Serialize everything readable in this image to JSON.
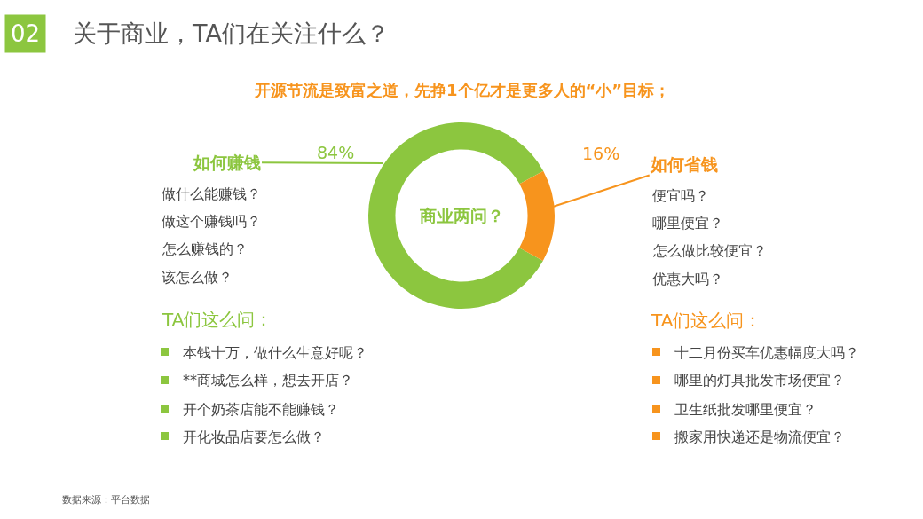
{
  "chart_data": {
    "type": "donut",
    "title": "关于商业，TA们在关注什么？",
    "subtitle": "开源节流是致富之道，先挣1个亿才是更多人的“小”目标；",
    "categories": [
      "如何赚钱",
      "如何省钱"
    ],
    "values": [
      84,
      16
    ],
    "colors": [
      "#8cc63f",
      "#f7941d"
    ],
    "value_labels": [
      "84%",
      "16%"
    ],
    "legend": false,
    "annotations": [
      "02",
      "商业两问？",
      "做什么能赚钱？",
      "做这个赚钱吗？",
      "怎么赚钱的？",
      "该怎么做？",
      "便宜吗？",
      "哪里便宜？",
      "怎么做比较便宜？",
      "优惠大吗？",
      "TA们这么问：",
      "本钱十万，做什么生意好呢？",
      "**商城怎么样，想去开店？",
      "开个奶茶店能不能赚钱？",
      "开化妆品店要怎么做？",
      "TA们这么问：",
      "十二月份买车优惠幅度大吗？",
      "哪里的灯具批发市场便宜？",
      "卫生纸批发哪里便宜？",
      "搬家用快递还是物流便宜？",
      "数据来源：平台数据"
    ]
  }
}
